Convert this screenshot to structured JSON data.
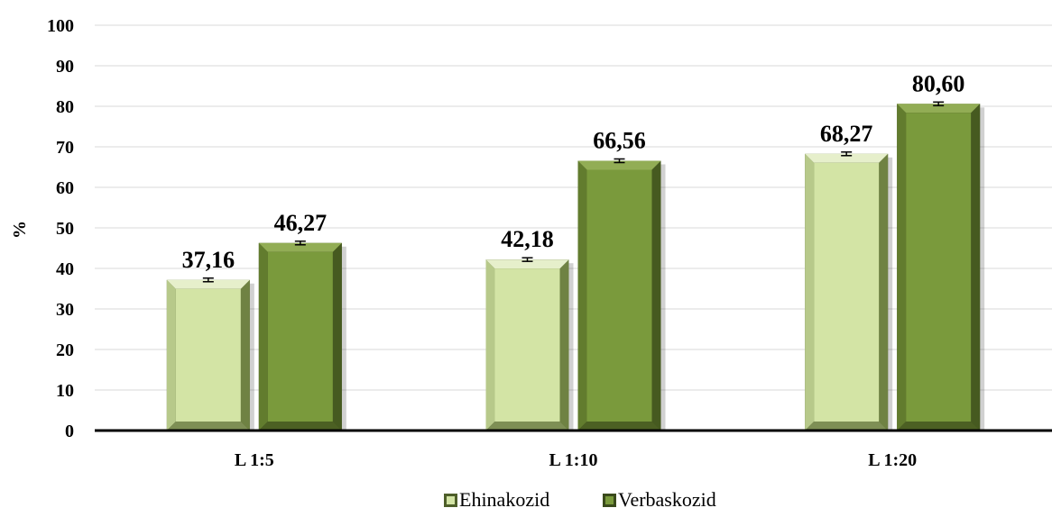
{
  "chart_data": {
    "type": "bar",
    "categories": [
      "L 1:5",
      "L 1:10",
      "L 1:20"
    ],
    "series": [
      {
        "name": "Ehinakozid",
        "values": [
          37.16,
          42.18,
          68.27
        ],
        "labels": [
          "37,16",
          "42,18",
          "68,27"
        ],
        "color": "#d3e4a5",
        "edge": "#4e5f2a"
      },
      {
        "name": "Verbaskozid",
        "values": [
          46.27,
          66.56,
          80.6
        ],
        "labels": [
          "46,27",
          "66,56",
          "80,60"
        ],
        "color": "#7a9a3c",
        "edge": "#3a4a1c"
      }
    ],
    "ylabel": "%",
    "xlabel": "",
    "ylim": [
      0,
      100
    ],
    "yticks": [
      0,
      10,
      20,
      30,
      40,
      50,
      60,
      70,
      80,
      90,
      100
    ],
    "grid": true,
    "legend": "bottom",
    "error_bars": true
  }
}
